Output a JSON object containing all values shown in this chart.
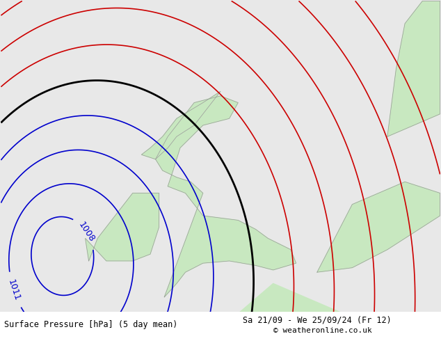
{
  "title_left": "Surface Pressure [hPa] (5 day mean)",
  "title_right": "Sa 21/09 - We 25/09/24 (Fr 12)",
  "copyright": "© weatheronline.co.uk",
  "bg_color": "#e8e8e8",
  "land_color": "#c8e8c0",
  "border_color": "#999999",
  "isobar_blue_color": "#0000cc",
  "isobar_red_color": "#cc0000",
  "isobar_black_color": "#000000",
  "label_1011": "1011",
  "label_1008": "1008",
  "figsize": [
    6.34,
    4.9
  ],
  "dpi": 100
}
